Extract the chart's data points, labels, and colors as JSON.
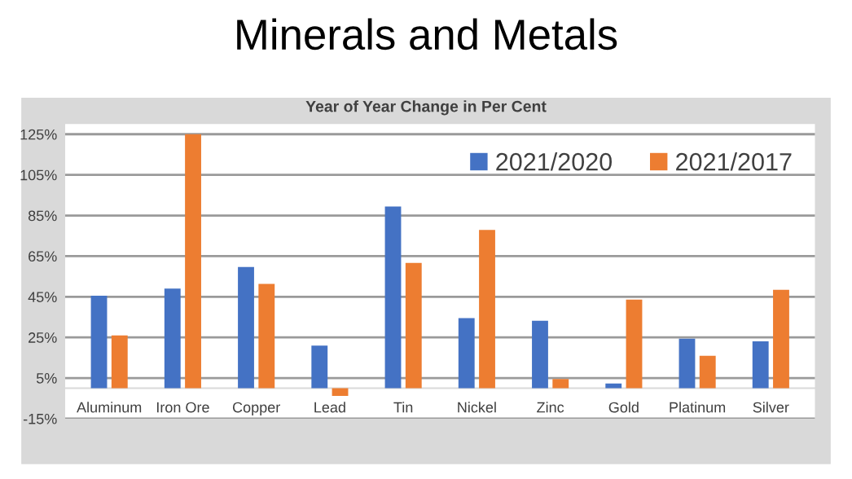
{
  "chart_data": {
    "type": "bar",
    "title": "Minerals and Metals",
    "subtitle": "Year of Year Change in Per Cent",
    "categories": [
      "Aluminum",
      "Iron Ore",
      "Copper",
      "Lead",
      "Tin",
      "Nickel",
      "Zinc",
      "Gold",
      "Platinum",
      "Silver"
    ],
    "series": [
      {
        "name": "2021/2020",
        "color": "#4472c4",
        "values": [
          45.5,
          49,
          59.6,
          21,
          89.4,
          34.5,
          33.2,
          2.3,
          24.4,
          23.1
        ]
      },
      {
        "name": "2021/2017",
        "color": "#ed7d31",
        "values": [
          26,
          125,
          51.3,
          -3.8,
          61.7,
          77.9,
          4.5,
          43.6,
          15.9,
          48.4
        ]
      }
    ],
    "ylim": [
      -15,
      130
    ],
    "yticks": [
      {
        "value": -15,
        "label": "-15%"
      },
      {
        "value": 5,
        "label": "5%"
      },
      {
        "value": 25,
        "label": "25%"
      },
      {
        "value": 45,
        "label": "45%"
      },
      {
        "value": 65,
        "label": "65%"
      },
      {
        "value": 85,
        "label": "85%"
      },
      {
        "value": 105,
        "label": "105%"
      },
      {
        "value": 125,
        "label": "125%"
      }
    ],
    "grid": "y",
    "legend": "top right"
  }
}
